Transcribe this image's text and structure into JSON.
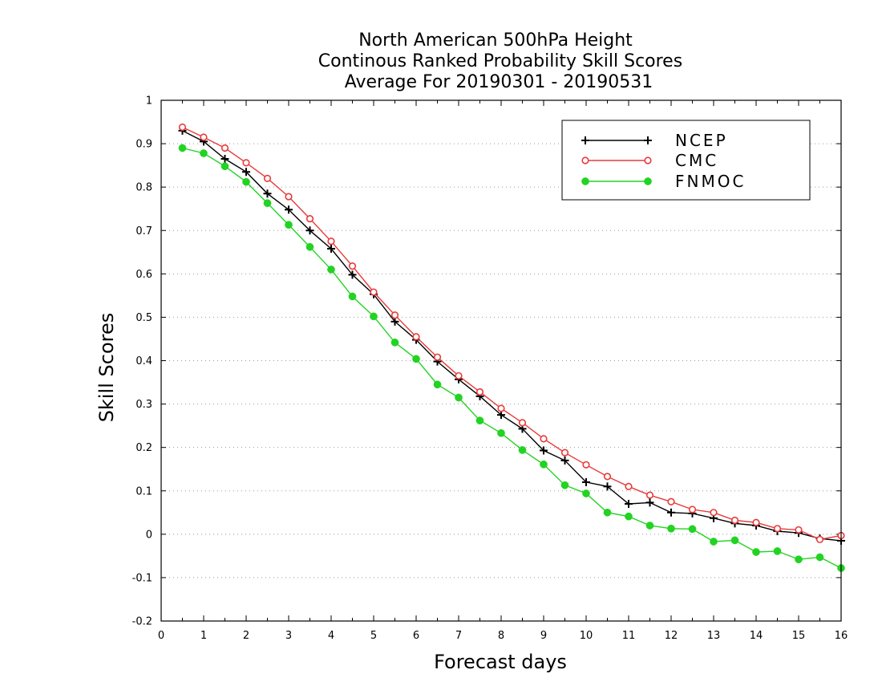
{
  "chart_data": {
    "type": "line",
    "title_lines": [
      "North American 500hPa Height",
      "Continous Ranked Probability Skill Scores",
      "Average For 20190301 - 20190531"
    ],
    "xlabel": "Forecast days",
    "ylabel": "Skill Scores",
    "xlim": [
      0,
      16
    ],
    "ylim": [
      -0.2,
      1
    ],
    "x_ticks": [
      "0",
      "1",
      "2",
      "3",
      "4",
      "5",
      "6",
      "7",
      "8",
      "9",
      "10",
      "11",
      "12",
      "13",
      "14",
      "15",
      "16"
    ],
    "y_ticks": [
      "-0.2",
      "-0.1",
      "0",
      "0.1",
      "0.2",
      "0.3",
      "0.4",
      "0.5",
      "0.6",
      "0.7",
      "0.8",
      "0.9",
      "1"
    ],
    "grid": "horizontal dotted",
    "legend_position": "top-right",
    "x": [
      0.5,
      1,
      1.5,
      2,
      2.5,
      3,
      3.5,
      4,
      4.5,
      5,
      5.5,
      6,
      6.5,
      7,
      7.5,
      8,
      8.5,
      9,
      9.5,
      10,
      10.5,
      11,
      11.5,
      12,
      12.5,
      13,
      13.5,
      14,
      14.5,
      15,
      15.5,
      16
    ],
    "series": [
      {
        "name": "NCEP",
        "color": "#000000",
        "marker": "plus",
        "values": [
          0.93,
          0.905,
          0.865,
          0.835,
          0.785,
          0.748,
          0.7,
          0.658,
          0.598,
          0.553,
          0.49,
          0.448,
          0.398,
          0.357,
          0.318,
          0.275,
          0.243,
          0.193,
          0.17,
          0.12,
          0.11,
          0.07,
          0.073,
          0.05,
          0.048,
          0.037,
          0.025,
          0.02,
          0.007,
          0.003,
          -0.01,
          -0.015
        ]
      },
      {
        "name": "CMC",
        "color": "#e83a3a",
        "marker": "open-circle",
        "values": [
          0.938,
          0.915,
          0.89,
          0.856,
          0.82,
          0.778,
          0.727,
          0.675,
          0.618,
          0.558,
          0.505,
          0.455,
          0.408,
          0.365,
          0.328,
          0.29,
          0.257,
          0.22,
          0.188,
          0.16,
          0.133,
          0.11,
          0.09,
          0.075,
          0.057,
          0.05,
          0.032,
          0.027,
          0.013,
          0.01,
          -0.012,
          -0.003
        ]
      },
      {
        "name": "FNMOC",
        "color": "#22d322",
        "marker": "filled-circle",
        "values": [
          0.89,
          0.878,
          0.848,
          0.812,
          0.763,
          0.713,
          0.662,
          0.61,
          0.548,
          0.502,
          0.442,
          0.404,
          0.345,
          0.315,
          0.262,
          0.233,
          0.194,
          0.161,
          0.113,
          0.094,
          0.05,
          0.041,
          0.02,
          0.013,
          0.012,
          -0.017,
          -0.014,
          -0.041,
          -0.039,
          -0.058,
          -0.053,
          -0.078
        ]
      }
    ]
  }
}
